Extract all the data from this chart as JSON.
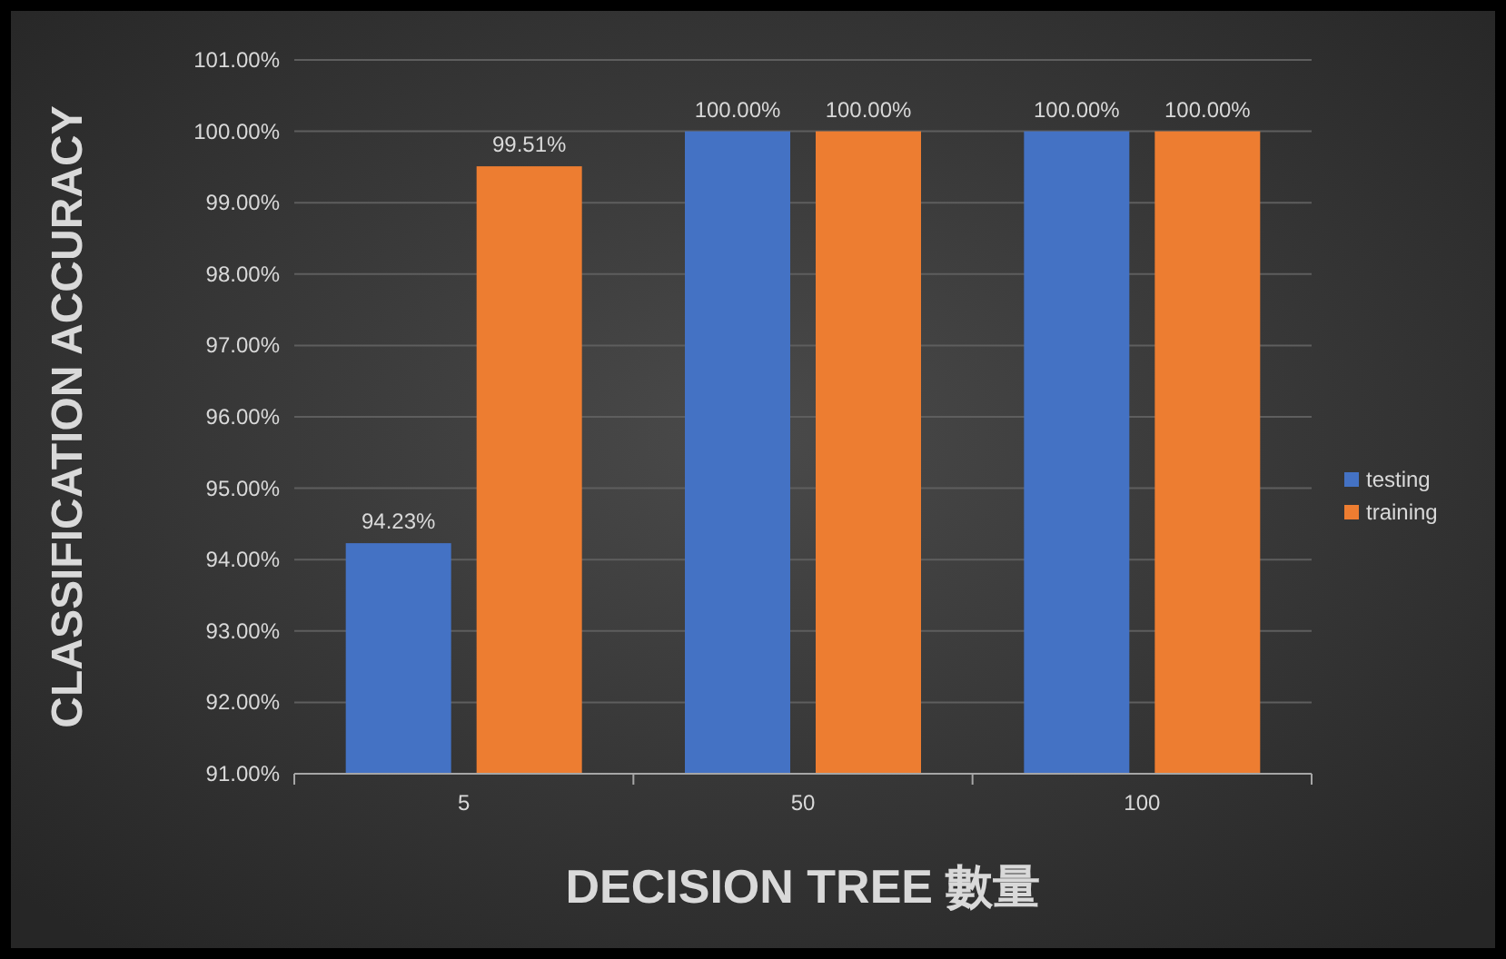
{
  "chart_data": {
    "type": "bar",
    "xlabel": "DECISION TREE 數量",
    "ylabel": "CLASSIFICATION ACCURACY",
    "categories": [
      "5",
      "50",
      "100"
    ],
    "series": [
      {
        "name": "testing",
        "color": "#4472c4",
        "values": [
          94.23,
          100,
          100
        ],
        "value_labels": [
          "94.23%",
          "100.00%",
          "100.00%"
        ]
      },
      {
        "name": "training",
        "color": "#ed7d31",
        "values": [
          99.51,
          100,
          100
        ],
        "value_labels": [
          "99.51%",
          "100.00%",
          "100.00%"
        ]
      }
    ],
    "ylim": [
      91,
      101
    ],
    "yticks": [
      {
        "value": 91,
        "label": "91.00%"
      },
      {
        "value": 92,
        "label": "92.00%"
      },
      {
        "value": 93,
        "label": "93.00%"
      },
      {
        "value": 94,
        "label": "94.00%"
      },
      {
        "value": 95,
        "label": "95.00%"
      },
      {
        "value": 96,
        "label": "96.00%"
      },
      {
        "value": 97,
        "label": "97.00%"
      },
      {
        "value": 98,
        "label": "98.00%"
      },
      {
        "value": 99,
        "label": "99.00%"
      },
      {
        "value": 100,
        "label": "100.00%"
      },
      {
        "value": 101,
        "label": "101.00%"
      }
    ],
    "grid": "y",
    "legend": "right"
  }
}
